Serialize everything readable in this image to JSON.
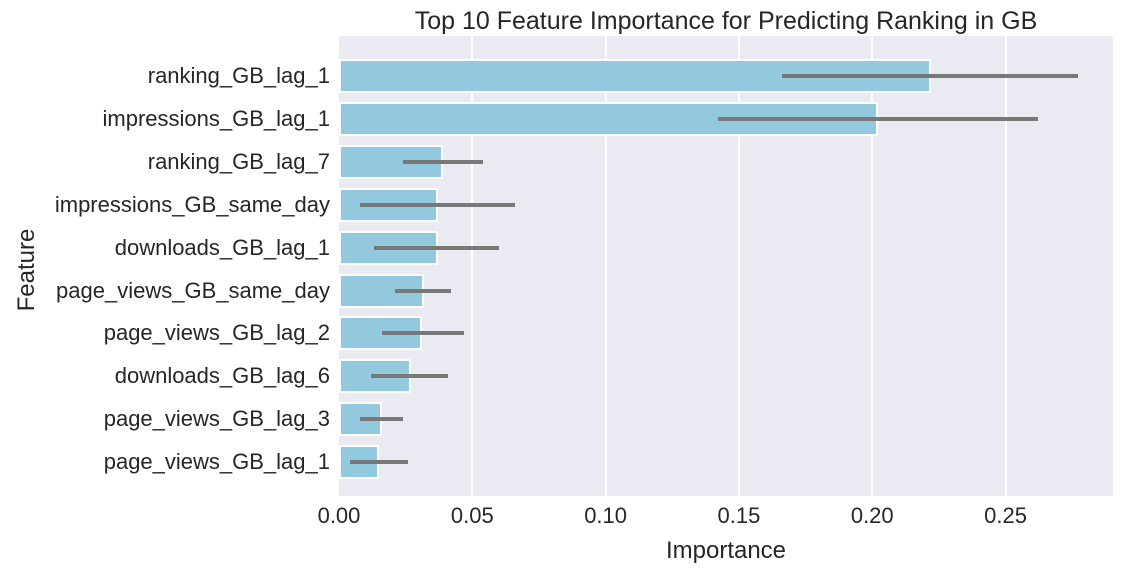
{
  "chart_data": {
    "type": "bar",
    "orientation": "horizontal",
    "title": "Top 10 Feature Importance for Predicting Ranking in GB",
    "xlabel": "Importance",
    "ylabel": "Feature",
    "categories": [
      "ranking_GB_lag_1",
      "impressions_GB_lag_1",
      "ranking_GB_lag_7",
      "impressions_GB_same_day",
      "downloads_GB_lag_1",
      "page_views_GB_same_day",
      "page_views_GB_lag_2",
      "downloads_GB_lag_6",
      "page_views_GB_lag_3",
      "page_views_GB_lag_1"
    ],
    "values": [
      0.222,
      0.202,
      0.039,
      0.037,
      0.037,
      0.032,
      0.031,
      0.027,
      0.016,
      0.015
    ],
    "error_low": [
      0.166,
      0.142,
      0.024,
      0.008,
      0.013,
      0.021,
      0.016,
      0.012,
      0.008,
      0.004
    ],
    "error_high": [
      0.277,
      0.262,
      0.054,
      0.066,
      0.06,
      0.042,
      0.047,
      0.041,
      0.024,
      0.026
    ],
    "xlim": [
      0,
      0.2903
    ],
    "xticks": [
      "0.00",
      "0.05",
      "0.10",
      "0.15",
      "0.20",
      "0.25"
    ],
    "xtick_values": [
      0,
      0.05,
      0.1,
      0.15,
      0.2,
      0.25
    ],
    "grid": "vertical-white-gridlines",
    "legend": "none",
    "colors": {
      "bar_fill": "#92c9df",
      "bar_edge": "#ffffff",
      "error_bar": "#787878",
      "plot_bg": "#eaeaf2",
      "figure_bg": "#ffffff",
      "text": "#262626"
    }
  }
}
